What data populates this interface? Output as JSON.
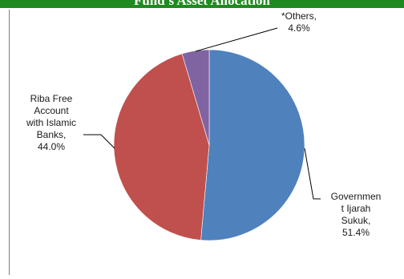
{
  "header": {
    "title": "Fund's Asset Allocation"
  },
  "colors": {
    "header_bg": "#1f8a1f",
    "leader_line": "#000000"
  },
  "chart_data": {
    "type": "pie",
    "title": "Fund's Asset Allocation",
    "start": "12 o'clock",
    "direction": "clockwise",
    "slices": [
      {
        "label": "Governmen t Ijarah Sukuk",
        "value": 51.4,
        "value_label": "51.4%",
        "color": "#4f81bd",
        "label_lines": [
          "Governmen",
          "t Ijarah",
          "Sukuk,",
          "51.4%"
        ]
      },
      {
        "label": "Riba Free Account with Islamic Banks",
        "value": 44.0,
        "value_label": "44.0%",
        "color": "#c0504d",
        "label_lines": [
          "Riba Free",
          "Account",
          "with Islamic",
          "Banks,",
          "44.0%"
        ]
      },
      {
        "label": "*Others",
        "value": 4.6,
        "value_label": "4.6%",
        "color": "#8064a2",
        "label_lines": [
          "*Others,",
          "4.6%"
        ]
      }
    ]
  }
}
